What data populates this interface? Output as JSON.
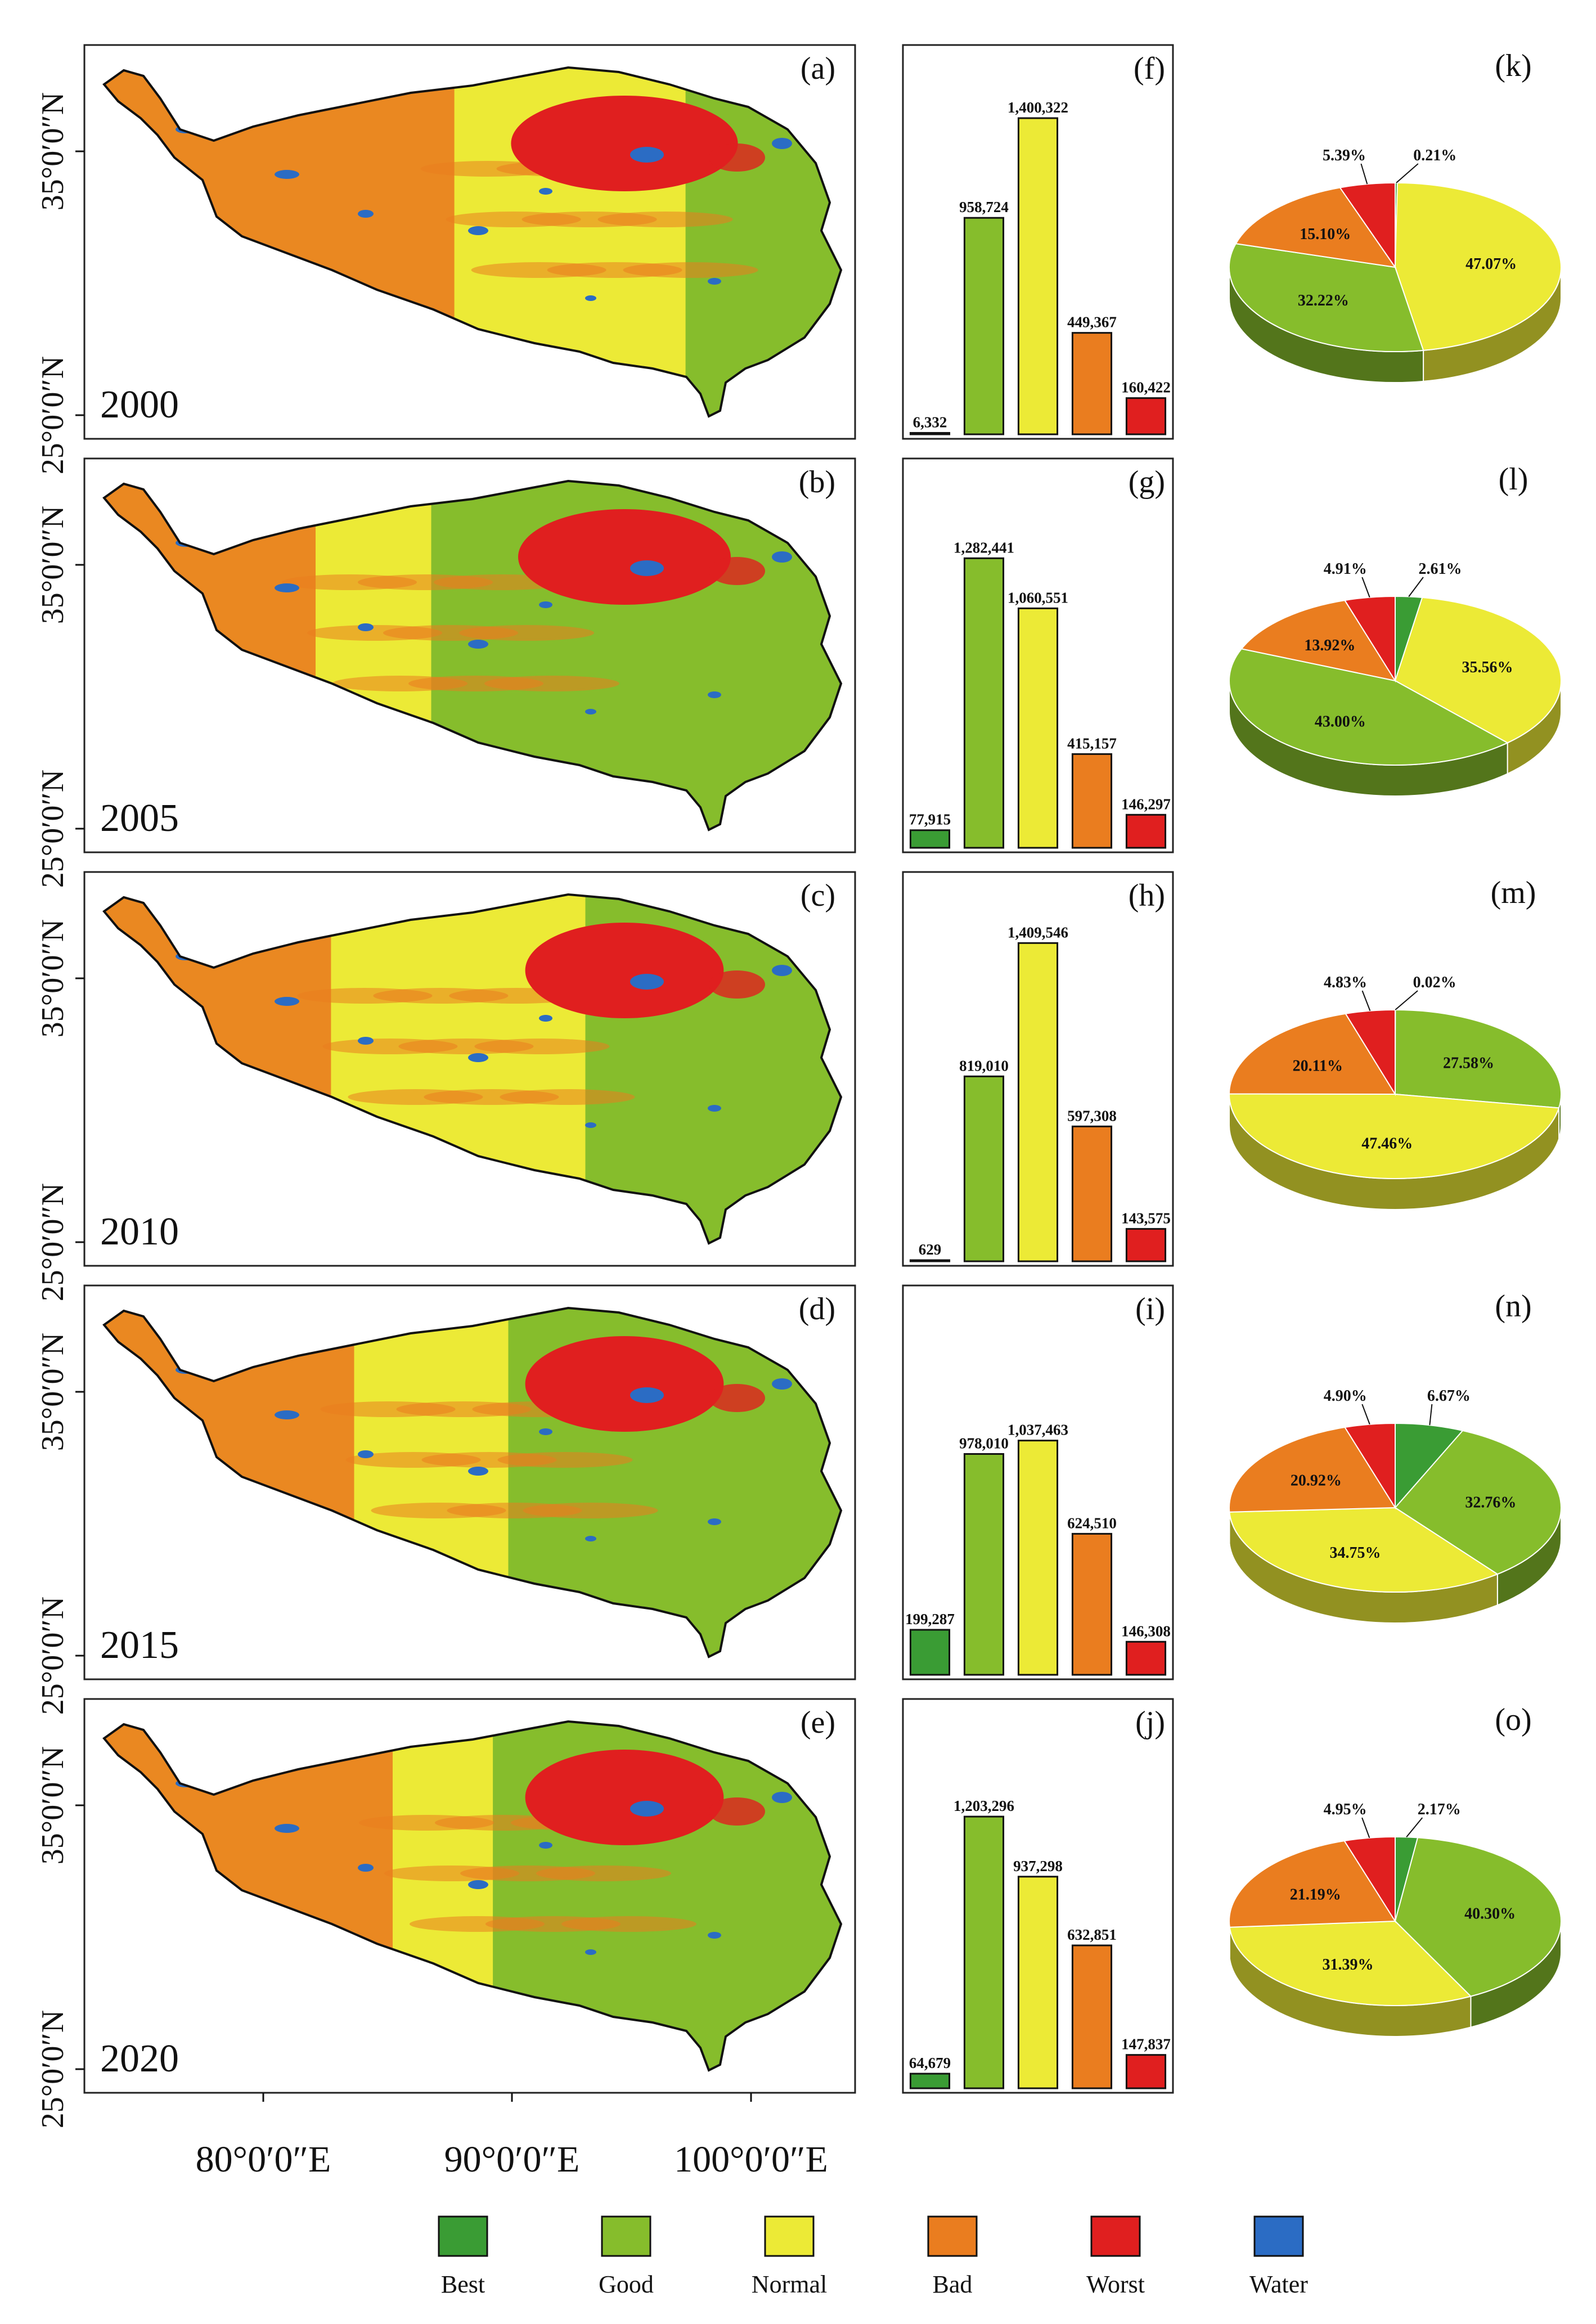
{
  "colors": {
    "Best": "#3a9c34",
    "Good": "#86bd2c",
    "Normal": "#ecea36",
    "Bad": "#ea7d1f",
    "Worst": "#e01f1f",
    "Water": "#2b6cc4"
  },
  "map_axes": {
    "lat_labels": [
      "35°0′0″N",
      "25°0′0″N"
    ],
    "lon_labels": [
      "80°0′0″E",
      "90°0′0″E",
      "100°0′0″E"
    ]
  },
  "legend": [
    "Best",
    "Good",
    "Normal",
    "Bad",
    "Worst",
    "Water"
  ],
  "rows": [
    {
      "year": "2000",
      "map_label": "(a)",
      "bar_label": "(f)",
      "pie_label": "(k)",
      "map_mix": {
        "Worst": 0.12,
        "Bad": 0.38,
        "Normal": 0.38,
        "Good": 0.12
      }
    },
    {
      "year": "2005",
      "map_label": "(b)",
      "bar_label": "(g)",
      "pie_label": "(l)",
      "map_mix": {
        "Worst": 0.1,
        "Bad": 0.2,
        "Normal": 0.25,
        "Good": 0.45
      }
    },
    {
      "year": "2010",
      "map_label": "(c)",
      "bar_label": "(h)",
      "pie_label": "(m)",
      "map_mix": {
        "Worst": 0.08,
        "Bad": 0.22,
        "Normal": 0.45,
        "Good": 0.25
      }
    },
    {
      "year": "2015",
      "map_label": "(d)",
      "bar_label": "(i)",
      "pie_label": "(n)",
      "map_mix": {
        "Worst": 0.08,
        "Bad": 0.25,
        "Normal": 0.32,
        "Good": 0.35
      }
    },
    {
      "year": "2020",
      "map_label": "(e)",
      "bar_label": "(j)",
      "pie_label": "(o)",
      "map_mix": {
        "Worst": 0.08,
        "Bad": 0.3,
        "Normal": 0.25,
        "Good": 0.37
      }
    }
  ],
  "chart_data": [
    {
      "type": "bar",
      "panel": "(f)",
      "categories": [
        "Best",
        "Good",
        "Normal",
        "Bad",
        "Worst"
      ],
      "values": [
        6332,
        958724,
        1400322,
        449367,
        160422
      ],
      "labels": [
        "6,332",
        "958,724",
        "1,400,322",
        "449,367",
        "160,422"
      ],
      "ylim": [
        0,
        1500000
      ]
    },
    {
      "type": "bar",
      "panel": "(g)",
      "categories": [
        "Best",
        "Good",
        "Normal",
        "Bad",
        "Worst"
      ],
      "values": [
        77915,
        1282441,
        1060551,
        415157,
        146297
      ],
      "labels": [
        "77,915",
        "1,282,441",
        "1,060,551",
        "415,157",
        "146,297"
      ],
      "ylim": [
        0,
        1500000
      ]
    },
    {
      "type": "bar",
      "panel": "(h)",
      "categories": [
        "Best",
        "Good",
        "Normal",
        "Bad",
        "Worst"
      ],
      "values": [
        629,
        819010,
        1409546,
        597308,
        143575
      ],
      "labels": [
        "629",
        "819,010",
        "1,409,546",
        "597,308",
        "143,575"
      ],
      "ylim": [
        0,
        1500000
      ]
    },
    {
      "type": "bar",
      "panel": "(i)",
      "categories": [
        "Best",
        "Good",
        "Normal",
        "Bad",
        "Worst"
      ],
      "values": [
        199287,
        978010,
        1037463,
        624510,
        146308
      ],
      "labels": [
        "199,287",
        "978,010",
        "1,037,463",
        "624,510",
        "146,308"
      ],
      "ylim": [
        0,
        1500000
      ]
    },
    {
      "type": "bar",
      "panel": "(j)",
      "categories": [
        "Best",
        "Good",
        "Normal",
        "Bad",
        "Worst"
      ],
      "values": [
        64679,
        1203296,
        937298,
        632851,
        147837
      ],
      "labels": [
        "64,679",
        "1,203,296",
        "937,298",
        "632,851",
        "147,837"
      ],
      "ylim": [
        0,
        1500000
      ]
    },
    {
      "type": "pie",
      "panel": "(k)",
      "slices": [
        {
          "name": "Best",
          "value": 0.21,
          "label": "0.21%"
        },
        {
          "name": "Normal",
          "value": 47.07,
          "label": "47.07%"
        },
        {
          "name": "Good",
          "value": 32.22,
          "label": "32.22%"
        },
        {
          "name": "Bad",
          "value": 15.1,
          "label": "15.10%"
        },
        {
          "name": "Worst",
          "value": 5.39,
          "label": "5.39%"
        }
      ]
    },
    {
      "type": "pie",
      "panel": "(l)",
      "slices": [
        {
          "name": "Best",
          "value": 2.61,
          "label": "2.61%"
        },
        {
          "name": "Normal",
          "value": 35.56,
          "label": "35.56%"
        },
        {
          "name": "Good",
          "value": 43.0,
          "label": "43.00%"
        },
        {
          "name": "Bad",
          "value": 13.92,
          "label": "13.92%"
        },
        {
          "name": "Worst",
          "value": 4.91,
          "label": "4.91%"
        }
      ]
    },
    {
      "type": "pie",
      "panel": "(m)",
      "slices": [
        {
          "name": "Best",
          "value": 0.02,
          "label": "0.02%"
        },
        {
          "name": "Good",
          "value": 27.58,
          "label": "27.58%"
        },
        {
          "name": "Normal",
          "value": 47.46,
          "label": "47.46%"
        },
        {
          "name": "Bad",
          "value": 20.11,
          "label": "20.11%"
        },
        {
          "name": "Worst",
          "value": 4.83,
          "label": "4.83%"
        }
      ]
    },
    {
      "type": "pie",
      "panel": "(n)",
      "slices": [
        {
          "name": "Best",
          "value": 6.67,
          "label": "6.67%"
        },
        {
          "name": "Good",
          "value": 32.76,
          "label": "32.76%"
        },
        {
          "name": "Normal",
          "value": 34.75,
          "label": "34.75%"
        },
        {
          "name": "Bad",
          "value": 20.92,
          "label": "20.92%"
        },
        {
          "name": "Worst",
          "value": 4.9,
          "label": "4.90%"
        }
      ]
    },
    {
      "type": "pie",
      "panel": "(o)",
      "slices": [
        {
          "name": "Best",
          "value": 2.17,
          "label": "2.17%"
        },
        {
          "name": "Good",
          "value": 40.3,
          "label": "40.30%"
        },
        {
          "name": "Normal",
          "value": 31.39,
          "label": "31.39%"
        },
        {
          "name": "Bad",
          "value": 21.19,
          "label": "21.19%"
        },
        {
          "name": "Worst",
          "value": 4.95,
          "label": "4.95%"
        }
      ]
    }
  ]
}
